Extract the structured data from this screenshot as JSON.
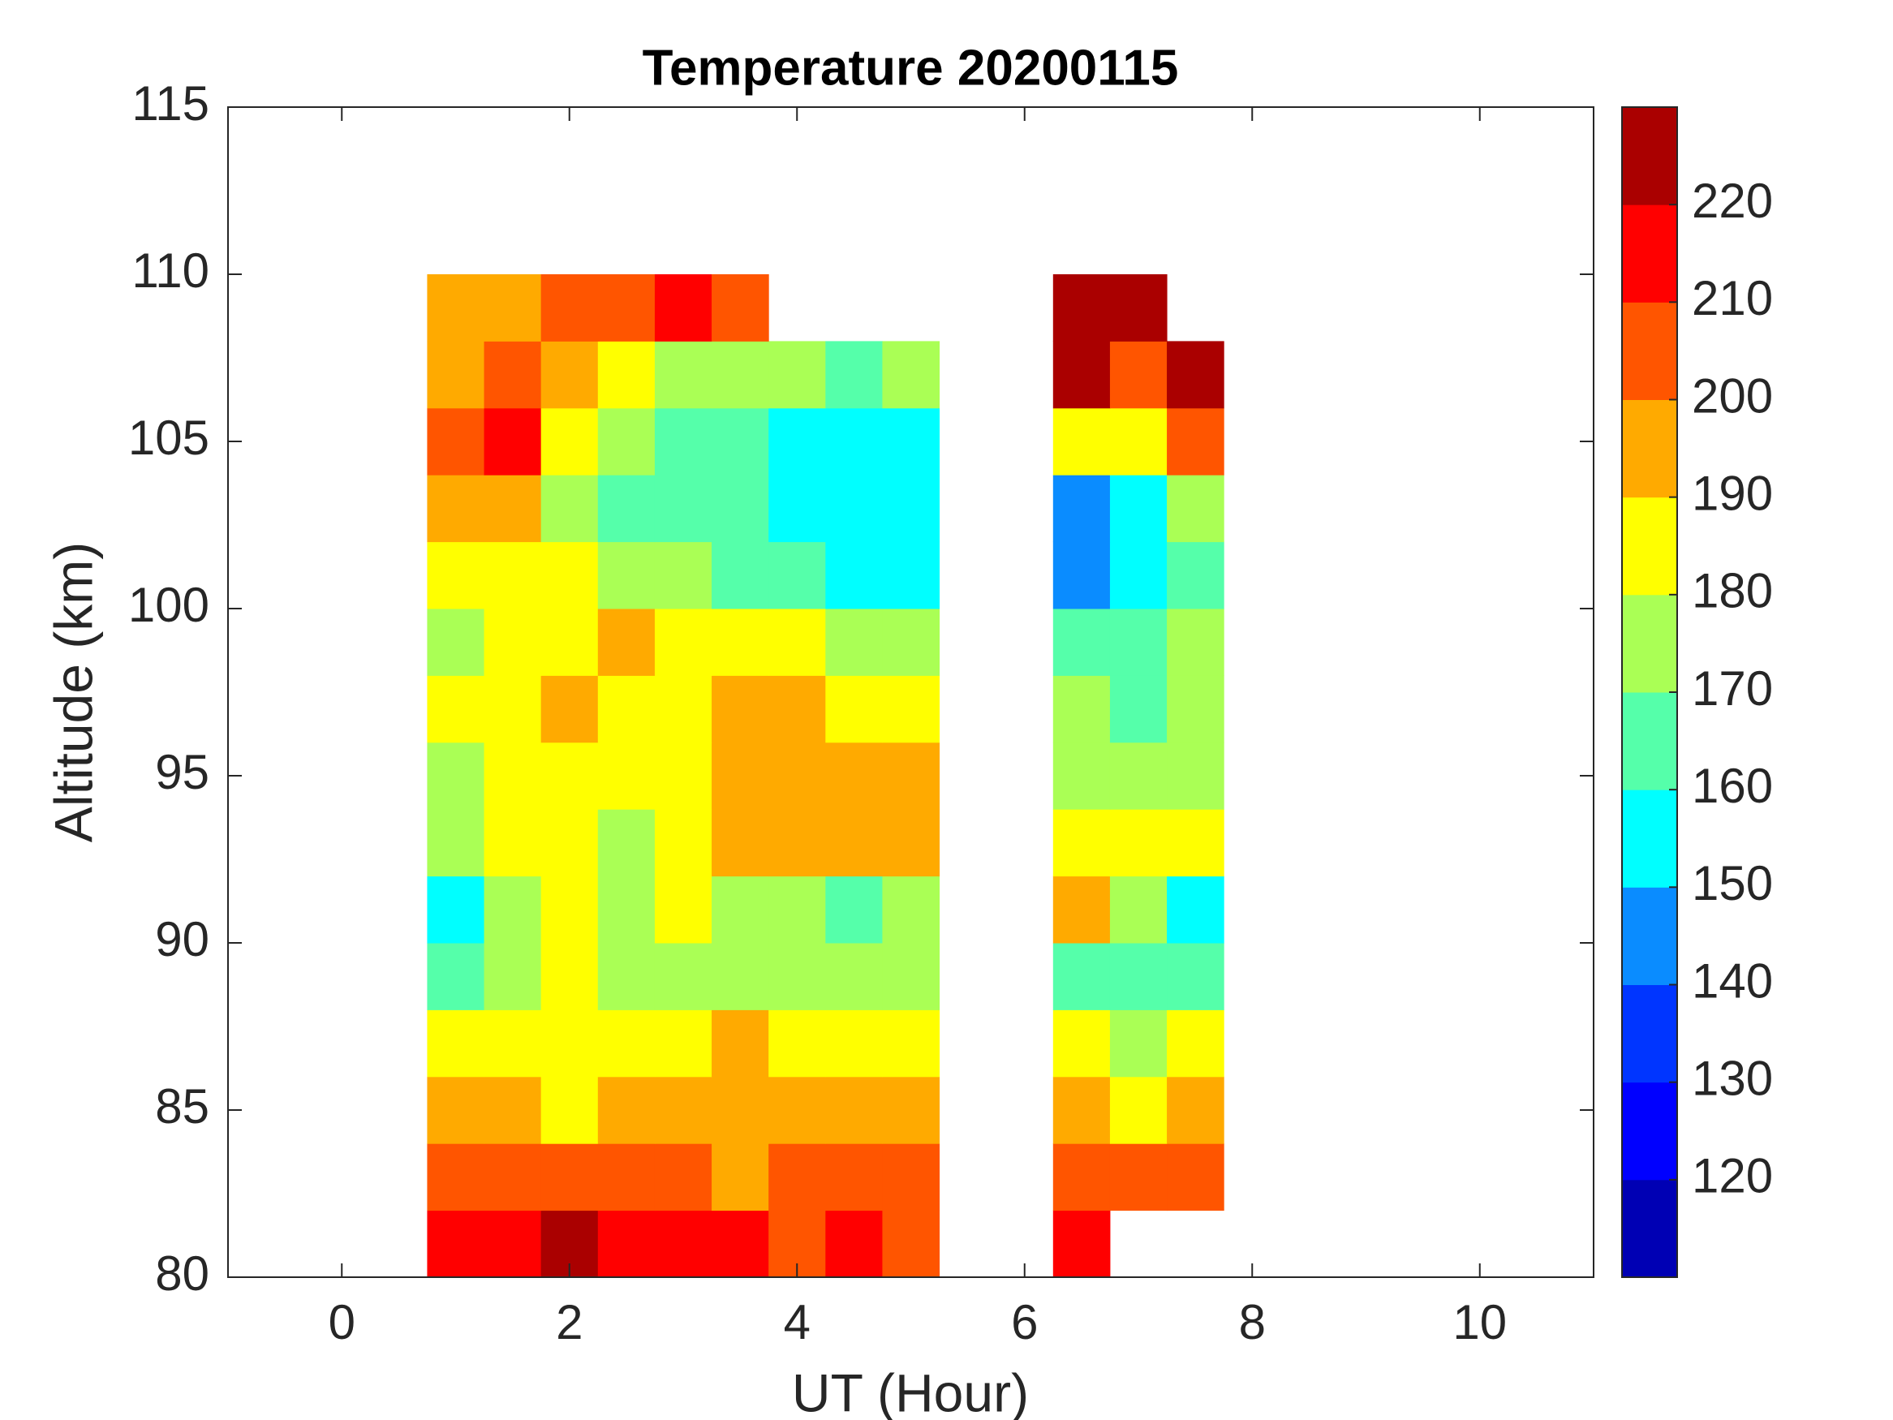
{
  "chart_data": {
    "type": "contourf",
    "title": "Temperature 20200115",
    "x_label": "UT (Hour)",
    "y_label": "Altitude (km)",
    "x": [
      1,
      1.5,
      2,
      2.5,
      3,
      3.5,
      4,
      4.5,
      5,
      5.5,
      6,
      6.5,
      7,
      7.5
    ],
    "y": [
      81,
      83,
      85,
      87,
      89,
      91,
      93,
      95,
      97,
      99,
      101,
      103,
      105,
      107,
      109
    ],
    "z": [
      [
        212,
        215,
        222,
        212,
        212,
        210,
        208,
        210,
        205,
        null,
        null,
        212,
        null,
        null
      ],
      [
        205,
        205,
        203,
        200,
        204,
        198,
        205,
        200,
        205,
        null,
        null,
        205,
        205,
        205
      ],
      [
        195,
        195,
        188,
        195,
        195,
        198,
        195,
        198,
        197,
        null,
        null,
        192,
        188,
        192
      ],
      [
        182,
        188,
        183,
        188,
        188,
        190,
        188,
        188,
        185,
        null,
        null,
        180,
        178,
        180
      ],
      [
        168,
        170,
        180,
        175,
        173,
        178,
        176,
        178,
        178,
        null,
        null,
        168,
        165,
        165
      ],
      [
        158,
        172,
        180,
        173,
        185,
        173,
        170,
        165,
        170,
        null,
        null,
        195,
        170,
        158
      ],
      [
        172,
        180,
        185,
        175,
        185,
        190,
        190,
        195,
        195,
        null,
        null,
        188,
        180,
        182
      ],
      [
        178,
        185,
        185,
        182,
        188,
        195,
        198,
        192,
        195,
        null,
        null,
        175,
        175,
        178
      ],
      [
        180,
        185,
        190,
        188,
        188,
        192,
        190,
        185,
        185,
        null,
        null,
        172,
        168,
        170
      ],
      [
        175,
        182,
        185,
        192,
        182,
        180,
        180,
        175,
        172,
        null,
        null,
        165,
        160,
        170
      ],
      [
        185,
        183,
        180,
        178,
        172,
        168,
        165,
        158,
        155,
        null,
        null,
        148,
        155,
        160
      ],
      [
        192,
        198,
        178,
        168,
        165,
        165,
        158,
        155,
        155,
        null,
        null,
        145,
        150,
        175
      ],
      [
        205,
        212,
        185,
        172,
        165,
        165,
        155,
        150,
        150,
        null,
        null,
        185,
        185,
        205
      ],
      [
        195,
        205,
        190,
        183,
        175,
        175,
        170,
        168,
        178,
        null,
        null,
        222,
        200,
        225
      ],
      [
        190,
        195,
        200,
        205,
        212,
        205,
        null,
        null,
        null,
        null,
        null,
        225,
        225,
        null
      ]
    ],
    "levels": [
      110,
      120,
      130,
      140,
      150,
      160,
      170,
      180,
      190,
      200,
      210,
      220,
      230
    ],
    "colors": [
      "#0000b4",
      "#0000ff",
      "#0035ff",
      "#0a8cff",
      "#00ffff",
      "#55ffaa",
      "#aaff55",
      "#ffff00",
      "#ffaa00",
      "#ff5500",
      "#ff0000",
      "#aa0000"
    ],
    "xlim": [
      -1,
      11
    ],
    "xticks": [
      0,
      2,
      4,
      6,
      8,
      10
    ],
    "ylim": [
      80,
      115
    ],
    "yticks": [
      80,
      85,
      90,
      95,
      100,
      105,
      110,
      115
    ],
    "colorbar_ticks": [
      120,
      130,
      140,
      150,
      160,
      170,
      180,
      190,
      200,
      210,
      220
    ]
  }
}
